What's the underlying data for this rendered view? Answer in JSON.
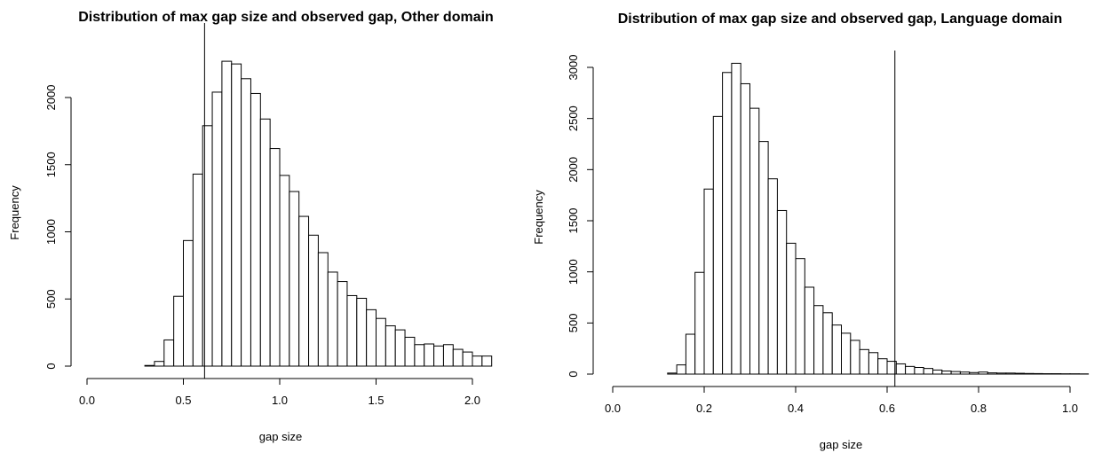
{
  "chart_data": [
    {
      "type": "bar",
      "title": "Distribution of max gap size and observed gap, Other domain",
      "xlabel": "gap size",
      "ylabel": "Frequency",
      "xlim": [
        0,
        2.1
      ],
      "ylim": [
        0,
        2300
      ],
      "xticks": [
        0.0,
        0.5,
        1.0,
        1.5,
        2.0
      ],
      "xtick_labels": [
        "0.0",
        "0.5",
        "1.0",
        "1.5",
        "2.0"
      ],
      "yticks": [
        0,
        500,
        1000,
        1500,
        2000
      ],
      "ytick_labels": [
        "0",
        "500",
        "1000",
        "1500",
        "2000"
      ],
      "bin_width": 0.05,
      "bin_start": 0.3,
      "counts": [
        5,
        35,
        195,
        520,
        935,
        1430,
        1790,
        2040,
        2270,
        2250,
        2140,
        2030,
        1840,
        1620,
        1420,
        1300,
        1115,
        975,
        845,
        700,
        630,
        525,
        505,
        420,
        355,
        300,
        270,
        215,
        160,
        165,
        150,
        160,
        125,
        105,
        75,
        75
      ],
      "observed_gap": 0.61,
      "grid": false,
      "legend": "none"
    },
    {
      "type": "bar",
      "title": "Distribution of max gap size and observed gap, Language domain",
      "xlabel": "gap size",
      "ylabel": "Frequency",
      "xlim": [
        0,
        1.05
      ],
      "ylim": [
        0,
        3100
      ],
      "xticks": [
        0.0,
        0.2,
        0.4,
        0.6,
        0.8,
        1.0
      ],
      "xtick_labels": [
        "0.0",
        "0.2",
        "0.4",
        "0.6",
        "0.8",
        "1.0"
      ],
      "yticks": [
        0,
        500,
        1000,
        1500,
        2000,
        2500,
        3000
      ],
      "ytick_labels": [
        "0",
        "500",
        "1000",
        "1500",
        "2000",
        "2500",
        "3000"
      ],
      "bin_width": 0.02,
      "bin_start": 0.12,
      "counts": [
        10,
        90,
        390,
        995,
        1810,
        2520,
        2950,
        3040,
        2840,
        2600,
        2275,
        1910,
        1600,
        1280,
        1130,
        850,
        670,
        600,
        480,
        400,
        330,
        240,
        210,
        150,
        125,
        100,
        75,
        65,
        55,
        40,
        30,
        25,
        20,
        15,
        20,
        12,
        10,
        10,
        8,
        6,
        5,
        4,
        4,
        3,
        3,
        2
      ],
      "observed_gap": 0.617,
      "grid": false,
      "legend": "none"
    }
  ]
}
